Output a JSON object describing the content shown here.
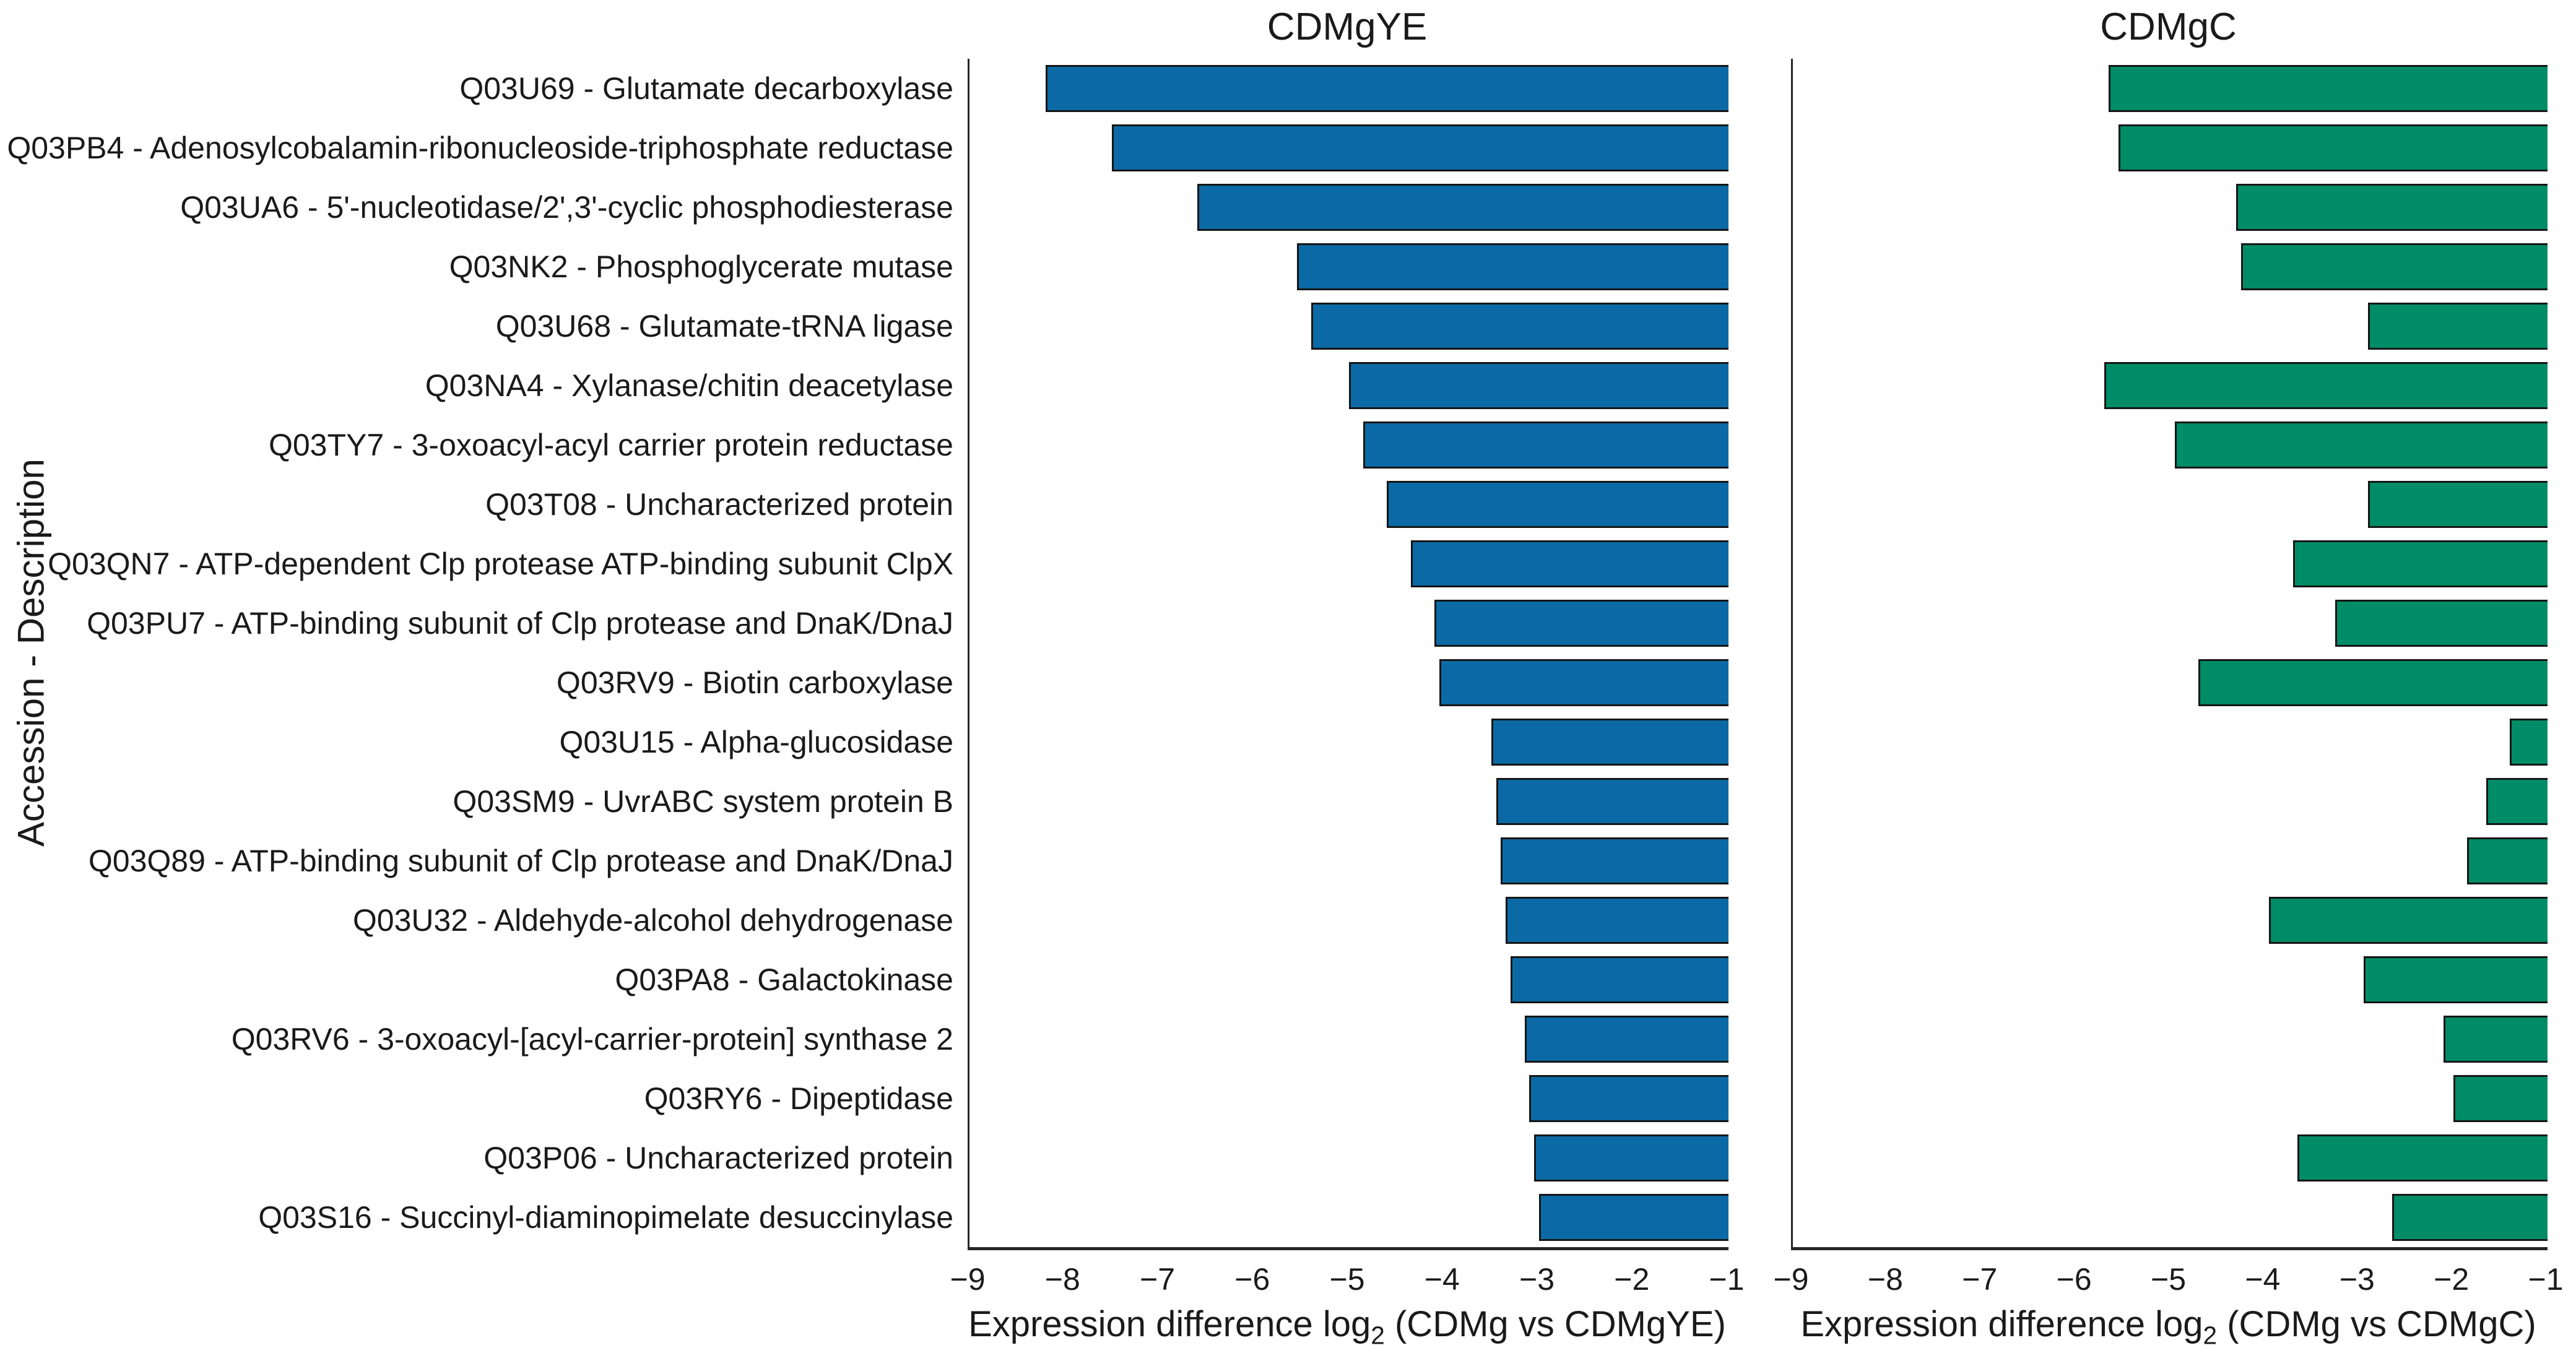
{
  "chart_data": {
    "type": "bar",
    "orientation": "horizontal",
    "grid": false,
    "ylabel": "Accession - Description",
    "xlim": [
      -9,
      -1
    ],
    "xticks": [
      -9,
      -8,
      -7,
      -6,
      -5,
      -4,
      -3,
      -2,
      -1
    ],
    "bar_baseline": -1,
    "categories": [
      "Q03U69 - Glutamate decarboxylase",
      "Q03PB4 - Adenosylcobalamin-ribonucleoside-triphosphate reductase",
      "Q03UA6 - 5'-nucleotidase/2',3'-cyclic phosphodiesterase",
      "Q03NK2 - Phosphoglycerate mutase",
      "Q03U68 - Glutamate-tRNA ligase",
      "Q03NA4 - Xylanase/chitin deacetylase",
      "Q03TY7 - 3-oxoacyl-acyl carrier protein reductase",
      "Q03T08 - Uncharacterized protein",
      "Q03QN7 - ATP-dependent Clp protease ATP-binding subunit ClpX",
      "Q03PU7 - ATP-binding subunit of Clp protease and DnaK/DnaJ",
      "Q03RV9 - Biotin carboxylase",
      "Q03U15 - Alpha-glucosidase",
      "Q03SM9 - UvrABC system protein B",
      "Q03Q89 - ATP-binding subunit of Clp protease and DnaK/DnaJ",
      "Q03U32 - Aldehyde-alcohol dehydrogenase",
      "Q03PA8 - Galactokinase",
      "Q03RV6 - 3-oxoacyl-[acyl-carrier-protein] synthase 2",
      "Q03RY6 - Dipeptidase",
      "Q03P06 - Uncharacterized protein",
      "Q03S16 - Succinyl-diaminopimelate desuccinylase"
    ],
    "panels": [
      {
        "title": "CDMgYE",
        "xlabel": "Expression difference log2 (CDMg vs CDMgYE)",
        "xlabel_prefix": "Expression difference log",
        "xlabel_sub": "2",
        "xlabel_suffix": " (CDMg vs CDMgYE)",
        "color": "#0b6aa5",
        "values": [
          -8.2,
          -7.5,
          -6.6,
          -5.55,
          -5.4,
          -5.0,
          -4.85,
          -4.6,
          -4.35,
          -4.1,
          -4.05,
          -3.5,
          -3.45,
          -3.4,
          -3.35,
          -3.3,
          -3.15,
          -3.1,
          -3.05,
          -3.0
        ]
      },
      {
        "title": "CDMgC",
        "xlabel": "Expression difference log2 (CDMg vs CDMgC)",
        "xlabel_prefix": "Expression difference log",
        "xlabel_sub": "2",
        "xlabel_suffix": " (CDMg vs CDMgC)",
        "color": "#008c66",
        "values": [
          -5.65,
          -5.55,
          -4.3,
          -4.25,
          -2.9,
          -5.7,
          -4.95,
          -2.9,
          -3.7,
          -3.25,
          -4.7,
          -1.4,
          -1.65,
          -1.85,
          -3.95,
          -2.95,
          -2.1,
          -2.0,
          -3.65,
          -2.65
        ]
      }
    ]
  },
  "style": {
    "spine_color": "#262626",
    "bar_edge_color": "#151515",
    "text_color": "#1a1a1a",
    "background": "#ffffff"
  }
}
